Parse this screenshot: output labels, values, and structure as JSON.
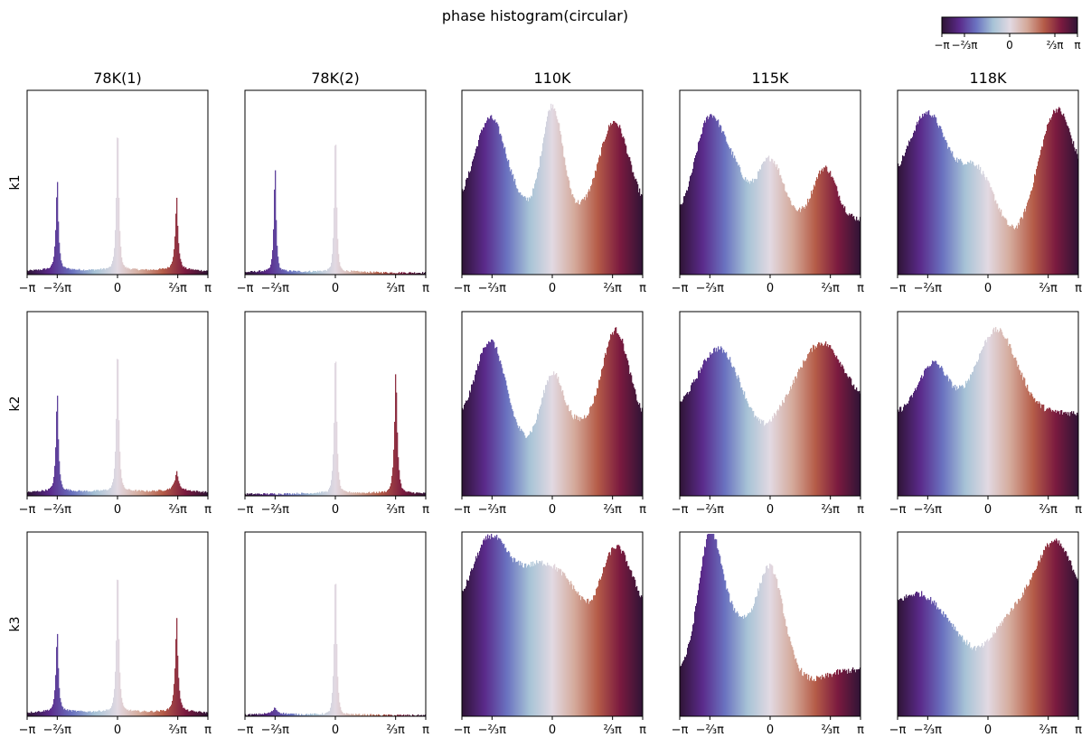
{
  "title": "phase histogram(circular)",
  "colormap": {
    "name": "twilight_shifted",
    "stops": [
      "#2f1436",
      "#5a2a8a",
      "#6a72c0",
      "#a7c3d6",
      "#e2d9e2",
      "#d4a99a",
      "#b55c48",
      "#7b1a3f",
      "#2f1436"
    ],
    "tick_labels": [
      "−π",
      "−⅔π",
      "0",
      "⅔π",
      "π"
    ]
  },
  "chart_data": {
    "type": "bar",
    "layout": "grid 3 rows × 5 columns of histograms",
    "columns": [
      "78K(1)",
      "78K(2)",
      "110K",
      "115K",
      "118K"
    ],
    "rows": [
      "k1",
      "k2",
      "k3"
    ],
    "x_tick_labels": [
      "−π",
      "−⅔π",
      "0",
      "⅔π",
      "π"
    ],
    "x_ticks": [
      -3.14159,
      -2.0944,
      0,
      2.0944,
      3.14159
    ],
    "xlim": [
      -3.14159,
      3.14159
    ],
    "y_axis": "no ticks, linear count",
    "grid": false,
    "note_bins": "each panel a fine-binned histogram of phase values, bar color = colormap(phase)",
    "panels": [
      {
        "column": "78K(1)",
        "row": "k1",
        "baseline": 0.015,
        "peaks": [
          {
            "x": -2.1,
            "h": 0.57,
            "w": 0.05
          },
          {
            "x": 0.0,
            "h": 0.95,
            "w": 0.05
          },
          {
            "x": 2.05,
            "h": 0.42,
            "w": 0.06
          }
        ],
        "tail": 0.03
      },
      {
        "column": "78K(2)",
        "row": "k1",
        "baseline": 0.01,
        "peaks": [
          {
            "x": -2.1,
            "h": 0.68,
            "w": 0.045
          },
          {
            "x": 0.0,
            "h": 0.95,
            "w": 0.045
          }
        ],
        "tail": 0.02
      },
      {
        "column": "110K",
        "row": "k1",
        "baseline": 0.35,
        "peaks": [
          {
            "x": -2.15,
            "h": 0.5,
            "w": 0.55
          },
          {
            "x": 0.0,
            "h": 0.57,
            "w": 0.35
          },
          {
            "x": 2.15,
            "h": 0.48,
            "w": 0.5
          }
        ],
        "tail": 0.0
      },
      {
        "column": "115K",
        "row": "k1",
        "baseline": 0.3,
        "peaks": [
          {
            "x": -2.1,
            "h": 0.55,
            "w": 0.5
          },
          {
            "x": -1.2,
            "h": 0.2,
            "w": 0.4
          },
          {
            "x": 0.0,
            "h": 0.33,
            "w": 0.45
          },
          {
            "x": 1.9,
            "h": 0.28,
            "w": 0.4
          }
        ],
        "tail": 0.0
      },
      {
        "column": "118K",
        "row": "k1",
        "baseline": 0.5,
        "peaks": [
          {
            "x": -2.1,
            "h": 0.38,
            "w": 0.6
          },
          {
            "x": -0.5,
            "h": 0.1,
            "w": 0.4
          },
          {
            "x": 2.4,
            "h": 0.4,
            "w": 0.5
          }
        ],
        "dip": {
          "x": 0.9,
          "d": 0.25,
          "w": 0.5
        },
        "tail": 0.0
      },
      {
        "column": "78K(1)",
        "row": "k2",
        "baseline": 0.015,
        "peaks": [
          {
            "x": -2.1,
            "h": 0.62,
            "w": 0.05
          },
          {
            "x": 0.0,
            "h": 0.95,
            "w": 0.05
          },
          {
            "x": 2.05,
            "h": 0.1,
            "w": 0.07
          }
        ],
        "tail": 0.03
      },
      {
        "column": "78K(2)",
        "row": "k2",
        "baseline": 0.01,
        "peaks": [
          {
            "x": 0.0,
            "h": 0.95,
            "w": 0.05
          },
          {
            "x": 2.1,
            "h": 0.75,
            "w": 0.06
          }
        ],
        "tail": 0.02
      },
      {
        "column": "110K",
        "row": "k2",
        "baseline": 0.4,
        "peaks": [
          {
            "x": -2.15,
            "h": 0.45,
            "w": 0.5
          },
          {
            "x": 0.0,
            "h": 0.28,
            "w": 0.35
          },
          {
            "x": 2.2,
            "h": 0.5,
            "w": 0.45
          }
        ],
        "dip": {
          "x": -1.0,
          "d": 0.1,
          "w": 0.5
        },
        "tail": 0.0
      },
      {
        "column": "115K",
        "row": "k2",
        "baseline": 0.45,
        "peaks": [
          {
            "x": -1.8,
            "h": 0.35,
            "w": 0.7
          },
          {
            "x": 1.8,
            "h": 0.38,
            "w": 0.8
          }
        ],
        "dip": {
          "x": -0.3,
          "d": 0.1,
          "w": 0.5
        },
        "tail": 0.0
      },
      {
        "column": "118K",
        "row": "k2",
        "baseline": 0.45,
        "peaks": [
          {
            "x": -1.9,
            "h": 0.27,
            "w": 0.5
          },
          {
            "x": 0.3,
            "h": 0.45,
            "w": 0.7
          }
        ],
        "tail": 0.0
      },
      {
        "column": "78K(1)",
        "row": "k3",
        "baseline": 0.015,
        "peaks": [
          {
            "x": -2.1,
            "h": 0.5,
            "w": 0.05
          },
          {
            "x": 0.0,
            "h": 0.95,
            "w": 0.05
          },
          {
            "x": 2.05,
            "h": 0.55,
            "w": 0.06
          }
        ],
        "tail": 0.03
      },
      {
        "column": "78K(2)",
        "row": "k3",
        "baseline": 0.005,
        "peaks": [
          {
            "x": -2.1,
            "h": 0.03,
            "w": 0.08
          },
          {
            "x": 0.0,
            "h": 0.95,
            "w": 0.05
          }
        ],
        "tail": 0.015
      },
      {
        "column": "110K",
        "row": "k3",
        "baseline": 0.55,
        "peaks": [
          {
            "x": -2.2,
            "h": 0.38,
            "w": 0.6
          },
          {
            "x": -0.3,
            "h": 0.28,
            "w": 1.0
          },
          {
            "x": 2.2,
            "h": 0.37,
            "w": 0.55
          }
        ],
        "dip": {
          "x": 1.4,
          "d": 0.1,
          "w": 0.4
        },
        "tail": 0.0
      },
      {
        "column": "115K",
        "row": "k3",
        "baseline": 0.25,
        "peaks": [
          {
            "x": -2.1,
            "h": 0.7,
            "w": 0.4
          },
          {
            "x": -1.2,
            "h": 0.25,
            "w": 0.5
          },
          {
            "x": 0.0,
            "h": 0.55,
            "w": 0.45
          }
        ],
        "dip": {
          "x": 1.5,
          "d": 0.05,
          "w": 0.5
        },
        "tail": 0.0
      },
      {
        "column": "118K",
        "row": "k3",
        "baseline": 0.62,
        "peaks": [
          {
            "x": 2.3,
            "h": 0.33,
            "w": 0.6
          },
          {
            "x": -2.4,
            "h": 0.05,
            "w": 0.4
          }
        ],
        "dip": {
          "x": -0.4,
          "d": 0.25,
          "w": 0.7
        },
        "tail": 0.0
      }
    ]
  }
}
